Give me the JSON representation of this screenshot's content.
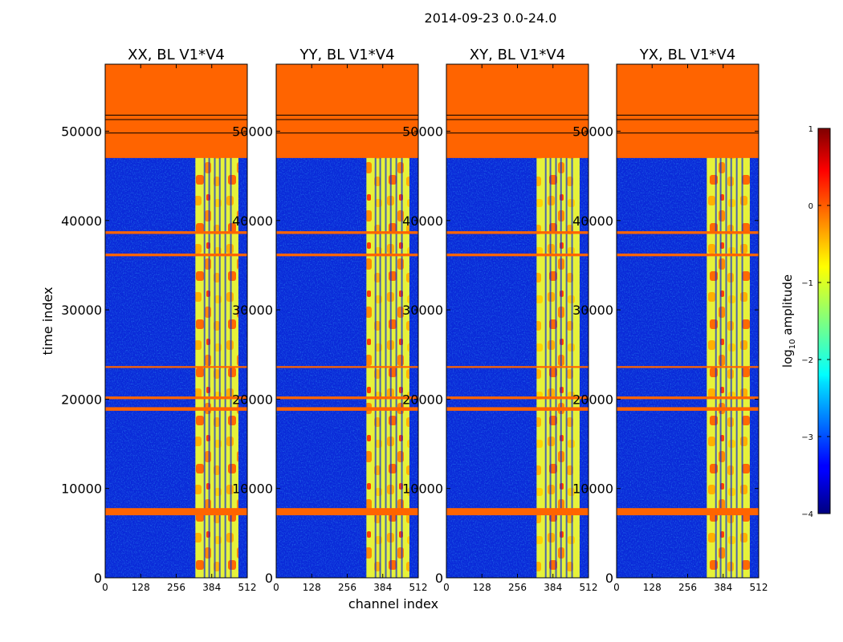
{
  "suptitle": "2014-09-23 0.0-24.0",
  "xlabel": "channel index",
  "ylabel": "time index",
  "xticks": [
    0,
    128,
    256,
    384,
    512
  ],
  "yticks": [
    0,
    10000,
    20000,
    30000,
    40000,
    50000
  ],
  "colorbar": {
    "label_main": "log",
    "label_sub": "10",
    "label_tail": " amplitude",
    "ticks": [
      1,
      0,
      -1,
      -2,
      -3,
      -4
    ],
    "tick_labels": [
      "1",
      "0",
      "−1",
      "−2",
      "−3",
      "−4"
    ],
    "range": [
      -4,
      1
    ],
    "colormap": "jet"
  },
  "chart_data": {
    "type": "heatmap",
    "title": "2014-09-23 0.0-24.0",
    "xlabel": "channel index",
    "ylabel": "time index",
    "xlim": [
      0,
      512
    ],
    "ylim": [
      0,
      57500
    ],
    "panels": [
      {
        "title": "XX, BL V1*V4",
        "polarization": "XX"
      },
      {
        "title": "YY, BL V1*V4",
        "polarization": "YY"
      },
      {
        "title": "XY, BL V1*V4",
        "polarization": "XY"
      },
      {
        "title": "YX, BL V1*V4",
        "polarization": "YX"
      }
    ],
    "value_label": "log10 amplitude",
    "value_range": [
      -4,
      1
    ],
    "flagged_value": 0,
    "flagged_time_ranges": [
      [
        47000,
        57500
      ],
      [
        7000,
        7800
      ],
      [
        18700,
        19100
      ],
      [
        20000,
        20300
      ],
      [
        23500,
        23700
      ],
      [
        36000,
        36300
      ],
      [
        38500,
        38800
      ]
    ],
    "band_channel_range": [
      325,
      480
    ],
    "band_value_range": [
      -1.2,
      0.3
    ],
    "background_value": -3.5
  },
  "colors": {
    "flagged": "#ff6400",
    "background": "#0a2ad8"
  }
}
